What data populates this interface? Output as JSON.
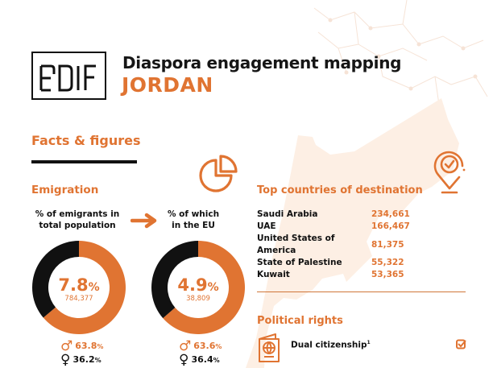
{
  "header": {
    "logo_text": "EUDIF",
    "title": "Diaspora engagement mapping",
    "country": "JORDAN"
  },
  "facts": {
    "section_title": "Facts & figures",
    "emigration_title": "Emigration",
    "label_total": "% of emigrants in total population",
    "label_total_line1": "% of emigrants in",
    "label_total_line2": "total population",
    "label_eu_line1": "% of which",
    "label_eu_line2": "in the EU"
  },
  "chart_data": [
    {
      "type": "pie",
      "title": "% of emigrants in total population",
      "center_value": "7.8",
      "center_unit": "%",
      "center_sub": "784,377",
      "slices": [
        {
          "name": "Male",
          "value": 63.8,
          "color": "#e07432"
        },
        {
          "name": "Female",
          "value": 36.2,
          "color": "#111111"
        }
      ],
      "male_label": "63.8",
      "female_label": "36.2"
    },
    {
      "type": "pie",
      "title": "% of which in the EU",
      "center_value": "4.9",
      "center_unit": "%",
      "center_sub": "38,809",
      "slices": [
        {
          "name": "Male",
          "value": 63.6,
          "color": "#e07432"
        },
        {
          "name": "Female",
          "value": 36.4,
          "color": "#111111"
        }
      ],
      "male_label": "63.6",
      "female_label": "36.4"
    }
  ],
  "destinations": {
    "title": "Top countries of destination",
    "rows": [
      {
        "country": "Saudi Arabia",
        "value": "234,661"
      },
      {
        "country": "UAE",
        "value": "166,467"
      },
      {
        "country": "United States of America",
        "value": "81,375"
      },
      {
        "country": "State of Palestine",
        "value": "55,322"
      },
      {
        "country": "Kuwait",
        "value": "53,365"
      }
    ]
  },
  "political": {
    "title": "Political rights",
    "items": [
      {
        "label": "Dual citizenship",
        "footnote": "1",
        "checked": true
      }
    ]
  },
  "icons": {
    "pie": "pie-chart-icon",
    "pin": "location-check-icon",
    "passport": "passport-icon",
    "check": "checkbox-checked-icon",
    "male": "♂",
    "female": "♀"
  },
  "colors": {
    "accent": "#e07432",
    "dark": "#111111",
    "map": "#fdf0e6"
  }
}
